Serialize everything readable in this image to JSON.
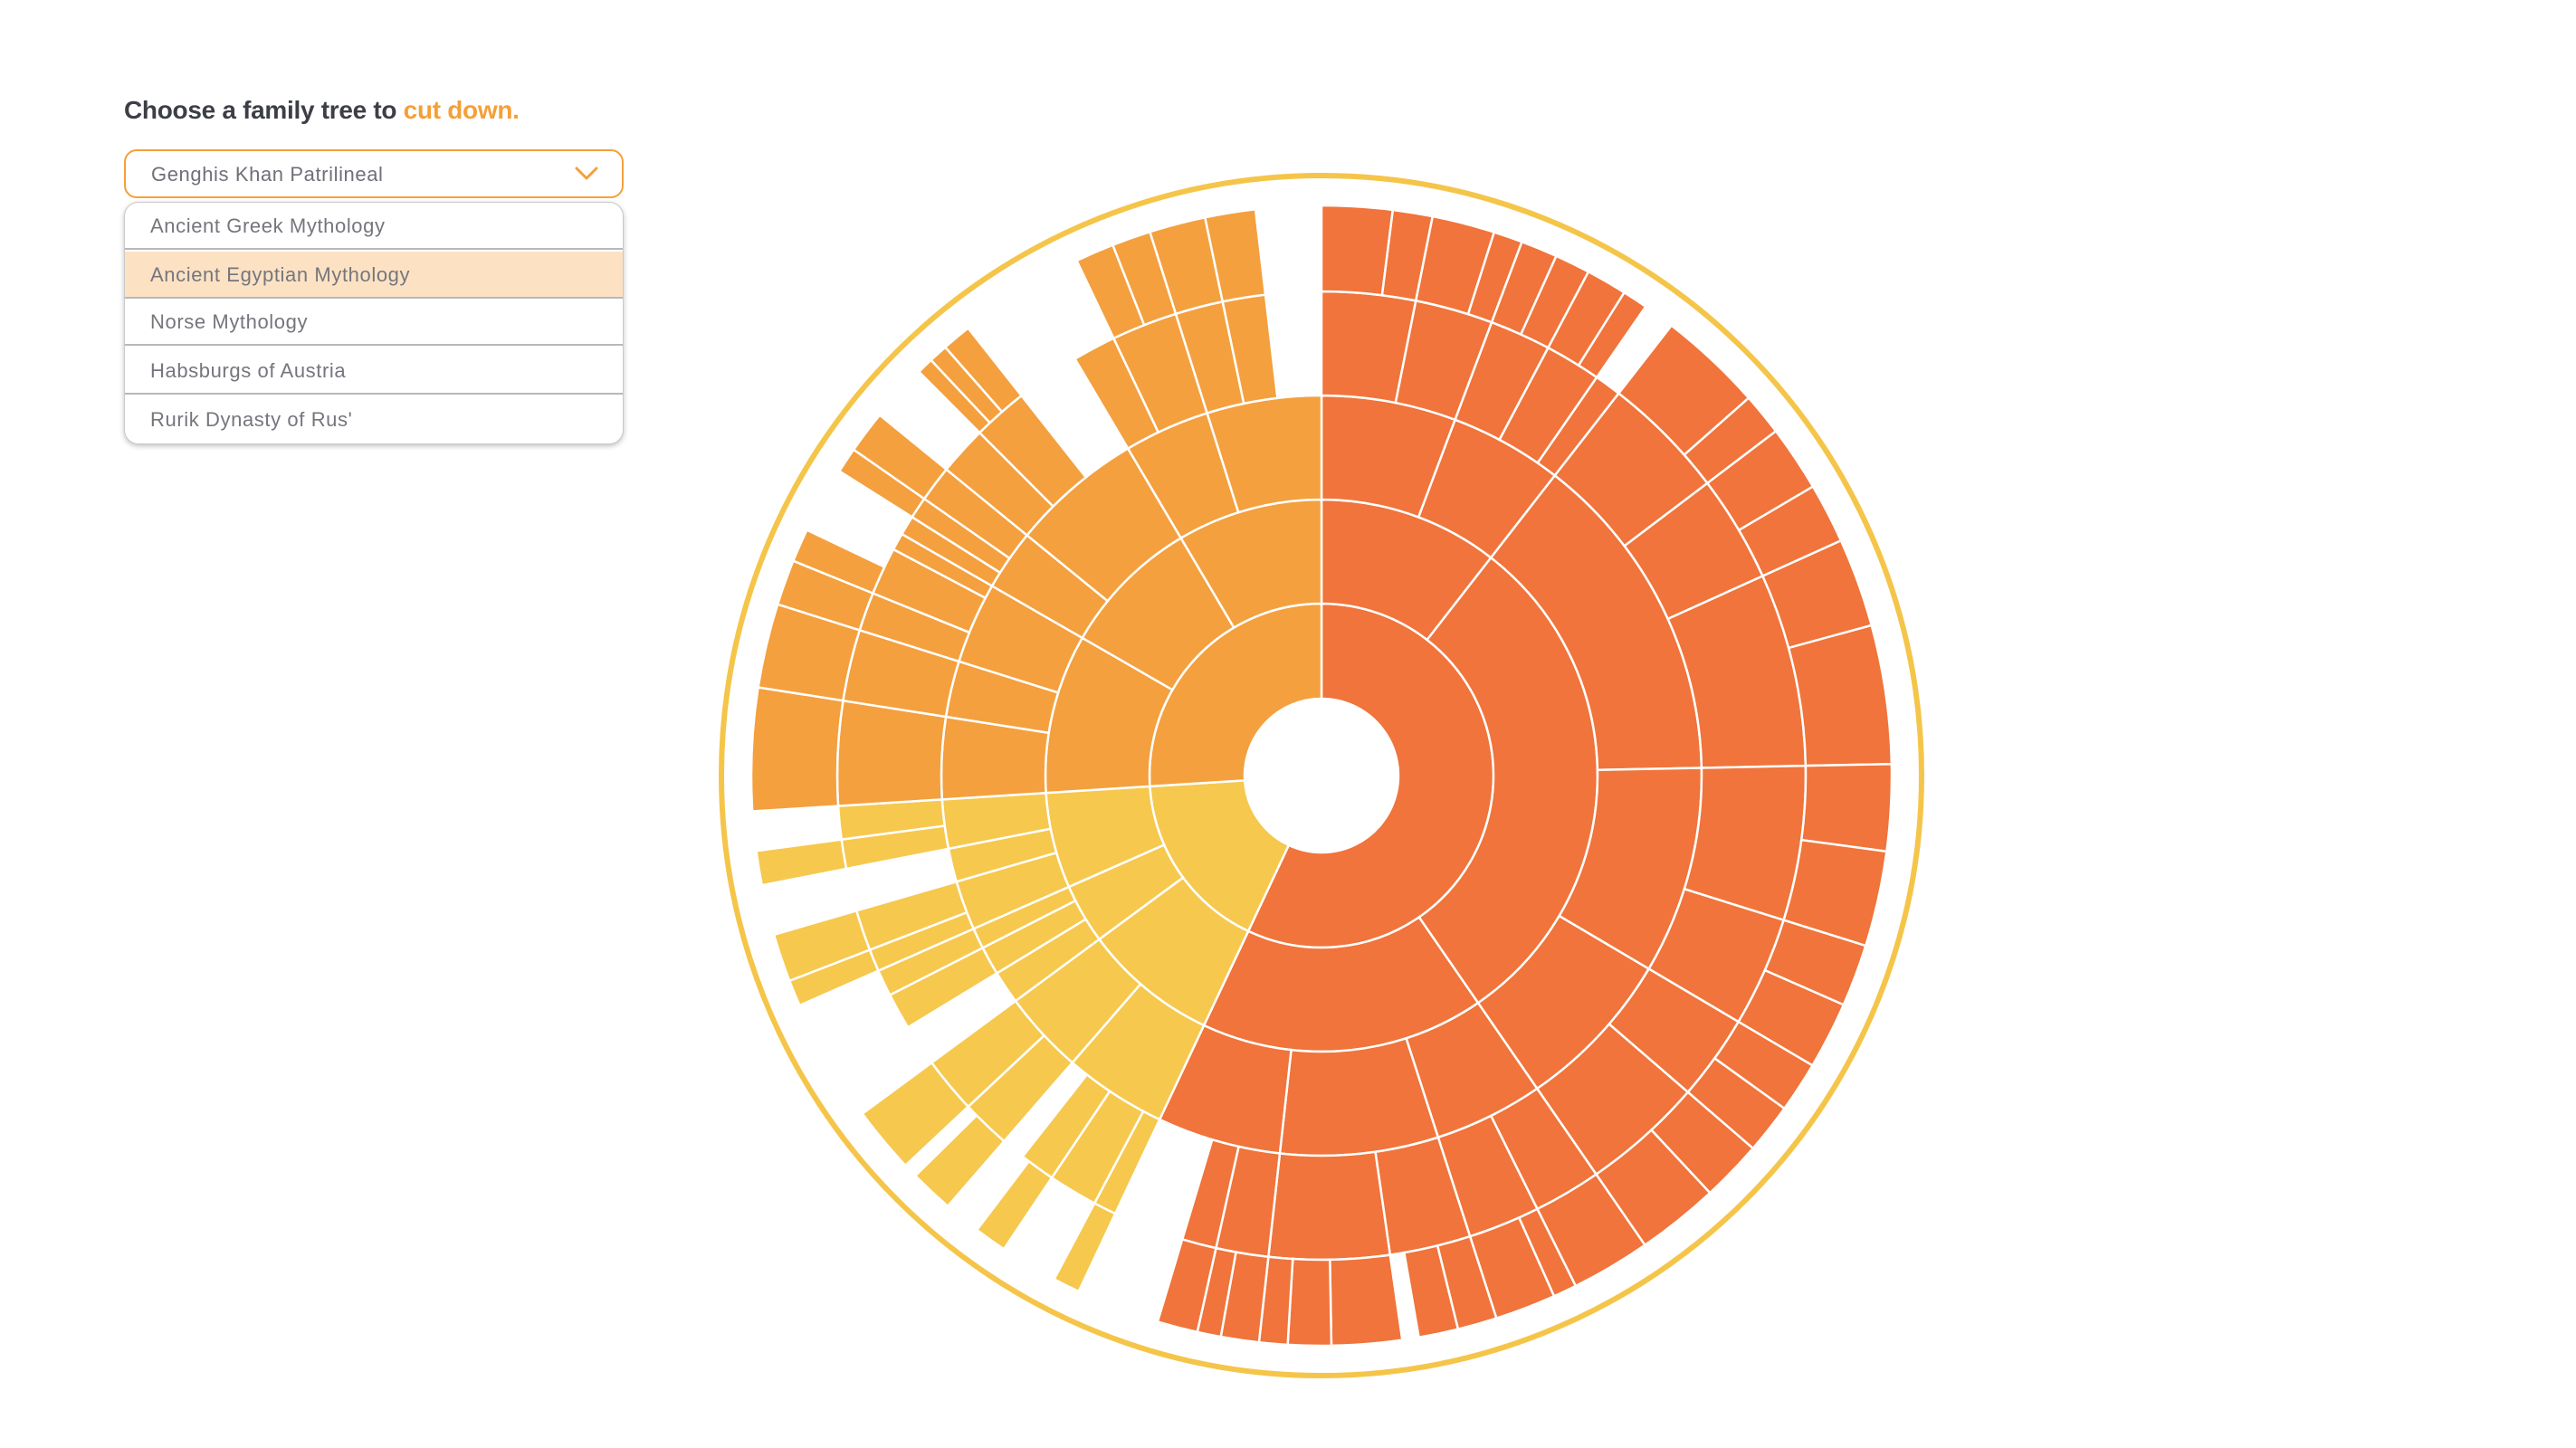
{
  "prompt": {
    "text": "Choose a family tree to ",
    "accent": "cut down."
  },
  "select": {
    "value": "Genghis Khan Patrilineal",
    "chevron_icon": "chevron-down-icon"
  },
  "dropdown": {
    "options": [
      "Ancient Greek Mythology",
      "Ancient Egyptian Mythology",
      "Norse Mythology",
      "Habsburgs of Austria",
      "Rurik Dynasty of Rus'"
    ],
    "highlighted_index": 1
  },
  "colors": {
    "accent": "#f4a038",
    "text": "#3d3f46",
    "ring": "#f5c54a",
    "red_orange": "#f0743b",
    "orange": "#f4a03e",
    "yellow": "#f6c84e"
  },
  "chart_data": {
    "type": "sunburst",
    "levels": 6,
    "top_level_branches": [
      {
        "color": "#f0743b",
        "share_pct": 57
      },
      {
        "color": "#f6c84e",
        "share_pct": 17
      },
      {
        "color": "#f4a03e",
        "share_pct": 26
      }
    ]
  }
}
